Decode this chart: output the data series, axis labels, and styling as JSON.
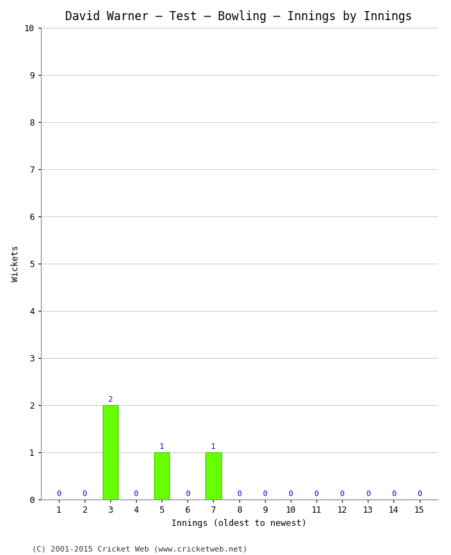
{
  "title": "David Warner – Test – Bowling – Innings by Innings",
  "xlabel": "Innings (oldest to newest)",
  "ylabel": "Wickets",
  "footnote": "(C) 2001-2015 Cricket Web (www.cricketweb.net)",
  "innings": [
    1,
    2,
    3,
    4,
    5,
    6,
    7,
    8,
    9,
    10,
    11,
    12,
    13,
    14,
    15
  ],
  "wickets": [
    0,
    0,
    2,
    0,
    1,
    0,
    1,
    0,
    0,
    0,
    0,
    0,
    0,
    0,
    0
  ],
  "bar_color": "#66ff00",
  "bar_edge_color": "#44cc00",
  "label_color": "#0000cc",
  "ylim": [
    0,
    10
  ],
  "yticks": [
    0,
    1,
    2,
    3,
    4,
    5,
    6,
    7,
    8,
    9,
    10
  ],
  "background_color": "#ffffff",
  "grid_color": "#cccccc",
  "title_fontsize": 12,
  "axis_label_fontsize": 9,
  "tick_fontsize": 9,
  "bar_label_fontsize": 8,
  "footnote_fontsize": 8
}
